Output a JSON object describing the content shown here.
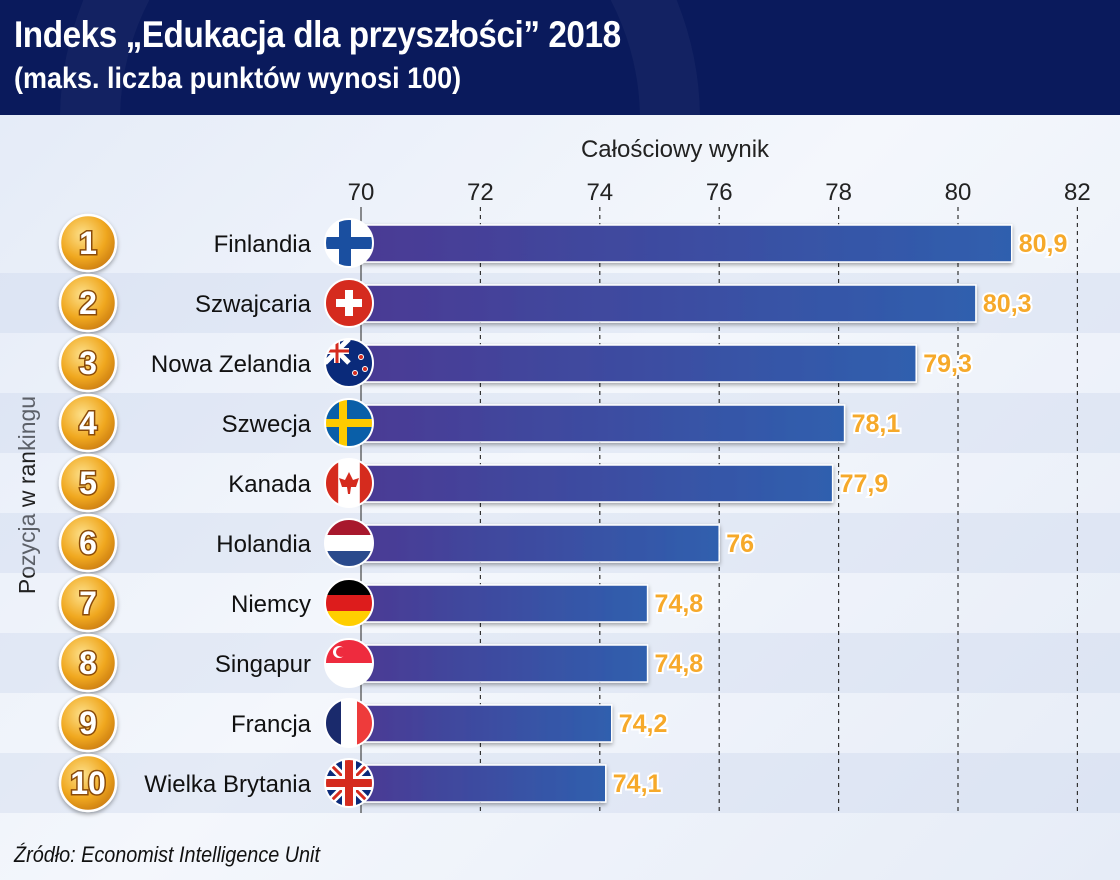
{
  "header": {
    "title": "Indeks „Edukacja dla przyszłości” 2018",
    "subtitle": "(maks. liczba punktów wynosi 100)"
  },
  "source": "Źródło: Economist Intelligence Unit",
  "chart_data": {
    "type": "bar",
    "orientation": "horizontal",
    "xlabel": "Całościowy wynik",
    "ylabel": "Pozycja w rankingu",
    "xlim": [
      70,
      82
    ],
    "xticks": [
      "70",
      "72",
      "74",
      "76",
      "78",
      "80",
      "82"
    ],
    "grid": "vertical dashed",
    "ranks": [
      "1",
      "2",
      "3",
      "4",
      "5",
      "6",
      "7",
      "8",
      "9",
      "10"
    ],
    "categories": [
      "Finlandia",
      "Szwajcaria",
      "Nowa Zelandia",
      "Szwecja",
      "Kanada",
      "Holandia",
      "Niemcy",
      "Singapur",
      "Francja",
      "Wielka Brytania"
    ],
    "flags": [
      "finland-flag",
      "switzerland-flag",
      "new-zealand-flag",
      "sweden-flag",
      "canada-flag",
      "netherlands-flag",
      "germany-flag",
      "singapore-flag",
      "france-flag",
      "uk-flag"
    ],
    "values": [
      80.9,
      80.3,
      79.3,
      78.1,
      77.9,
      76,
      74.8,
      74.8,
      74.2,
      74.1
    ],
    "value_labels": [
      "80,9",
      "80,3",
      "79,3",
      "78,1",
      "77,9",
      "76",
      "74,8",
      "74,8",
      "74,2",
      "74,1"
    ],
    "colors": {
      "bar_start": "#4a3a94",
      "bar_end": "#2f5fae",
      "value_label": "#f6a92a",
      "badge": "#f0a820",
      "header": "#0a1a5c"
    }
  }
}
